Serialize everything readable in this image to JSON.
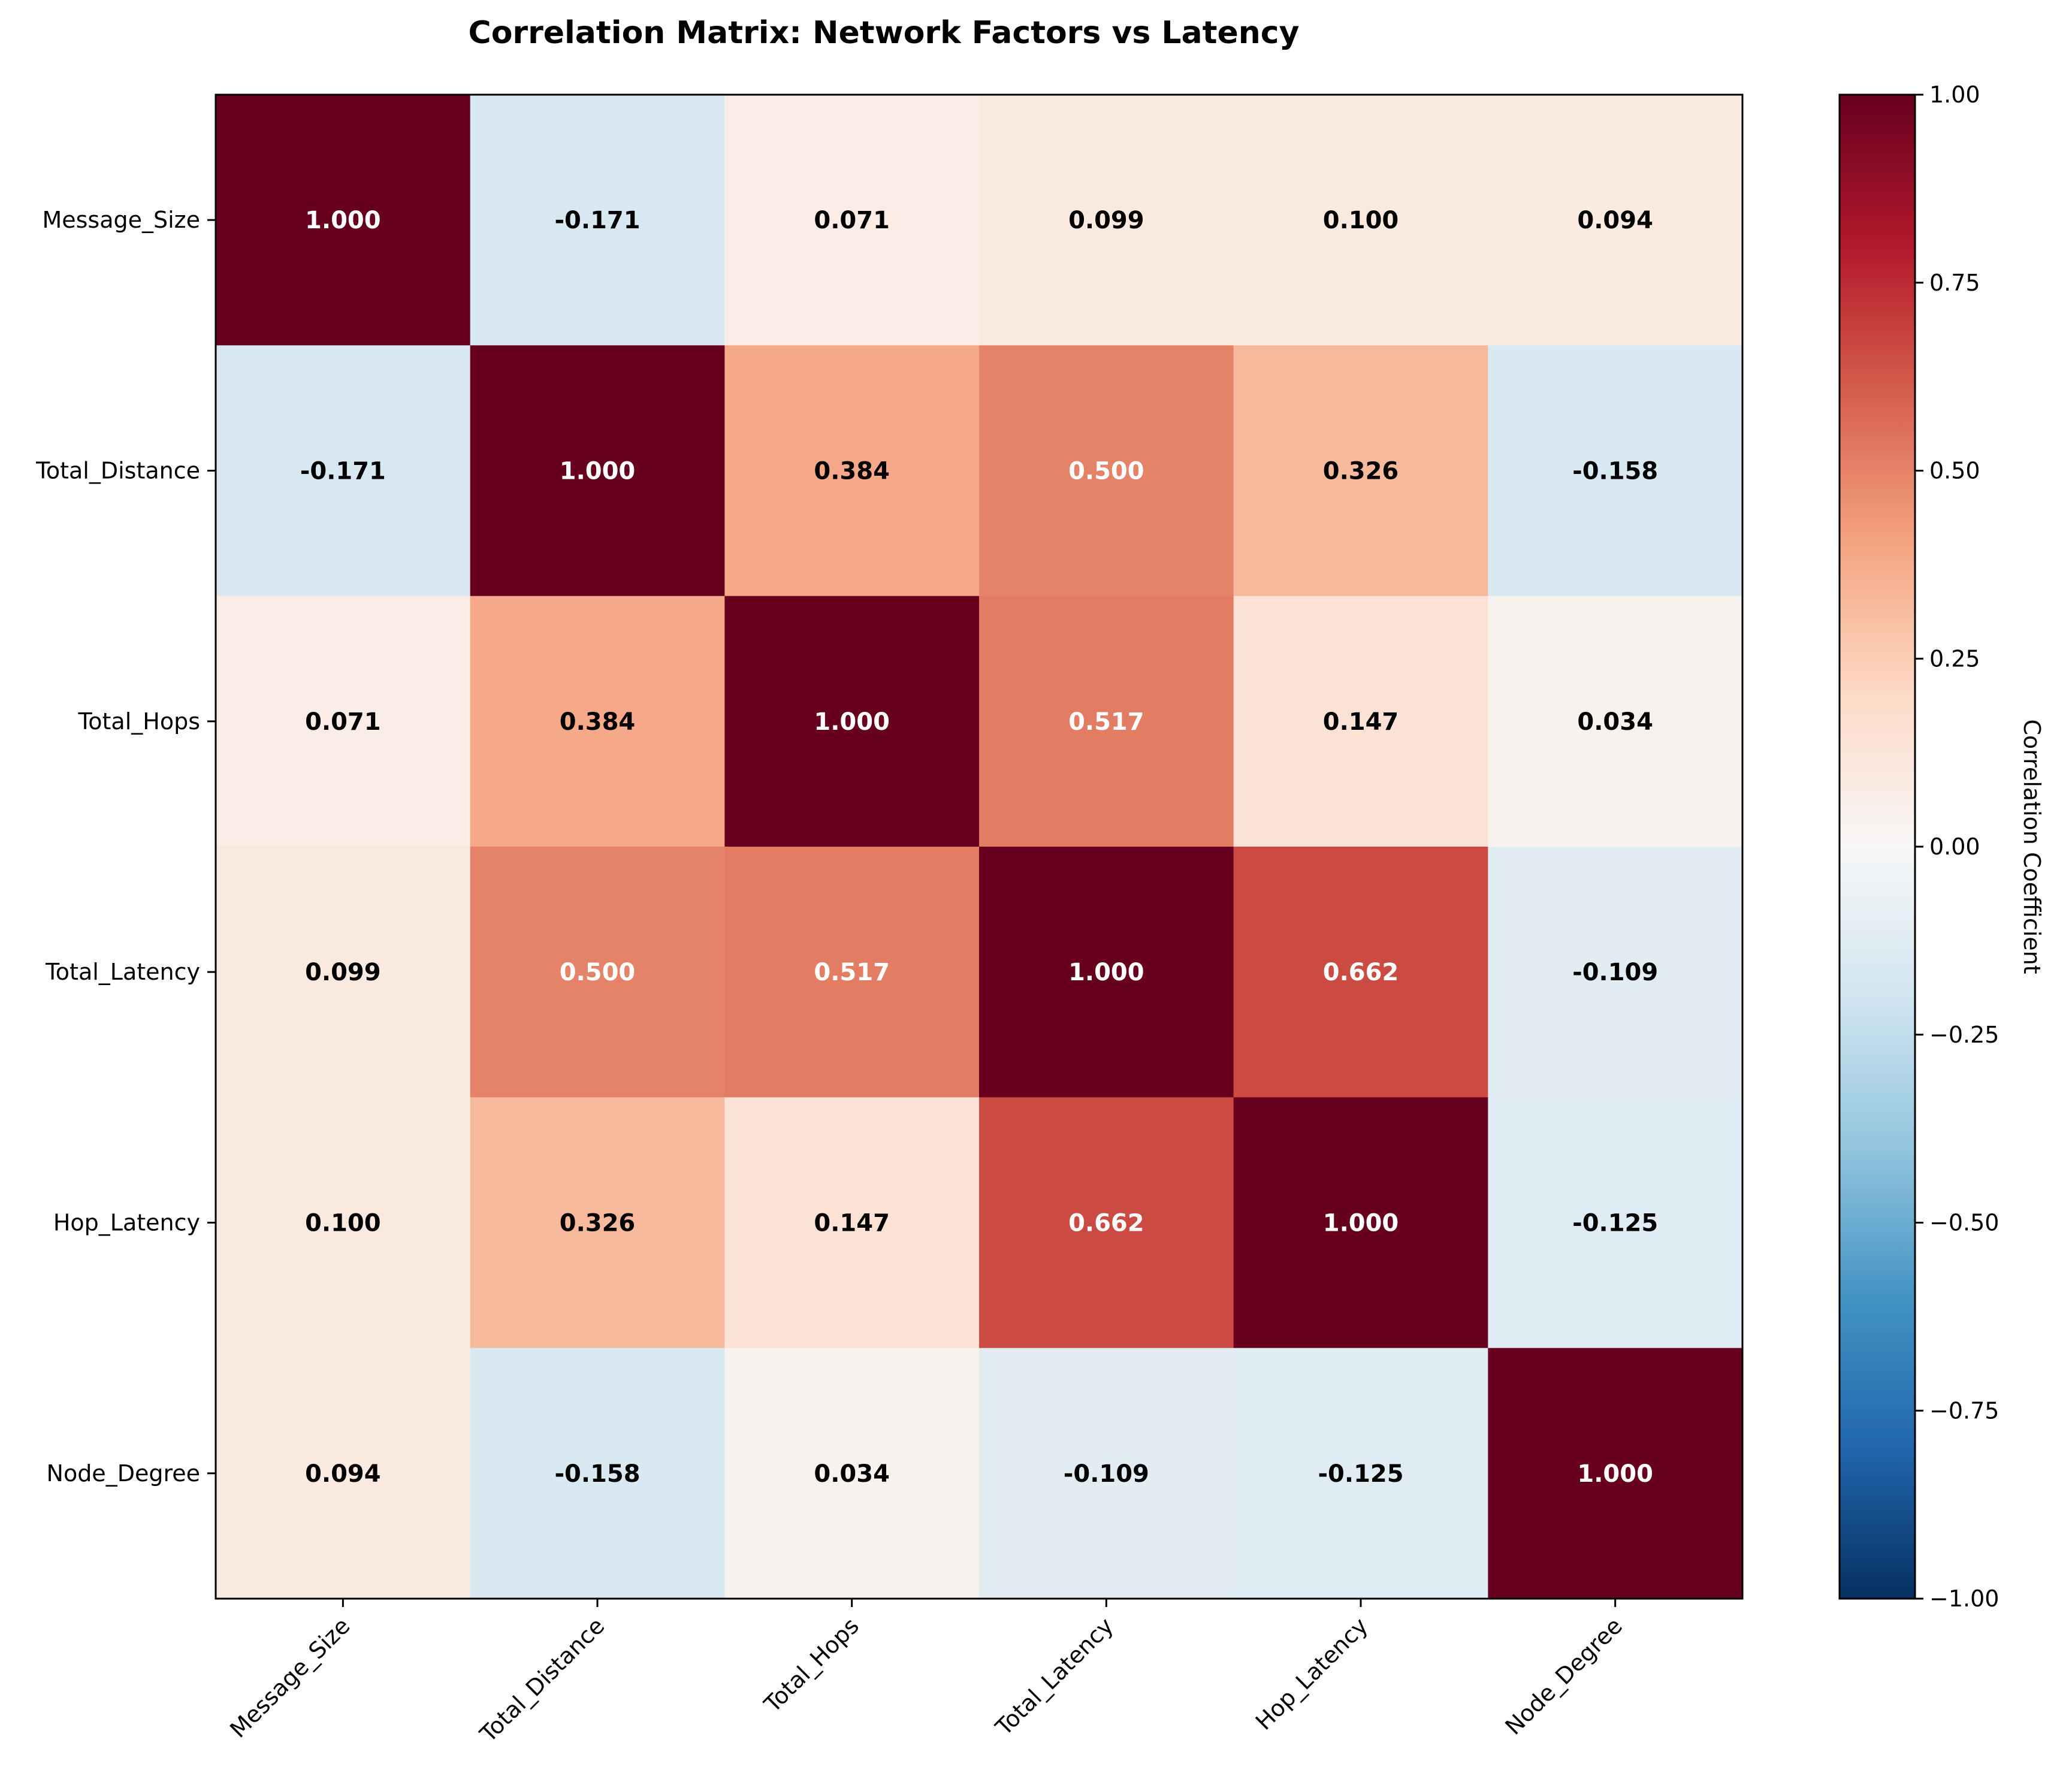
{
  "chart_data": {
    "type": "heatmap",
    "title": "Correlation Matrix: Network Factors vs Latency",
    "row_labels": [
      "Message_Size",
      "Total_Distance",
      "Total_Hops",
      "Total_Latency",
      "Hop_Latency",
      "Node_Degree"
    ],
    "col_labels": [
      "Message_Size",
      "Total_Distance",
      "Total_Hops",
      "Total_Latency",
      "Hop_Latency",
      "Node_Degree"
    ],
    "values": [
      [
        1.0,
        -0.171,
        0.071,
        0.099,
        0.1,
        0.094
      ],
      [
        -0.171,
        1.0,
        0.384,
        0.5,
        0.326,
        -0.158
      ],
      [
        0.071,
        0.384,
        1.0,
        0.517,
        0.147,
        0.034
      ],
      [
        0.099,
        0.5,
        0.517,
        1.0,
        0.662,
        -0.109
      ],
      [
        0.1,
        0.326,
        0.147,
        0.662,
        1.0,
        -0.125
      ],
      [
        0.094,
        -0.158,
        0.034,
        -0.109,
        -0.125,
        1.0
      ]
    ],
    "value_format": "3 decimals",
    "colormap": "RdBu_r",
    "vmin": -1.0,
    "vmax": 1.0,
    "colorbar": {
      "label": "Correlation Coefficient",
      "ticks": [
        1.0,
        0.75,
        0.5,
        0.25,
        0.0,
        -0.25,
        -0.5,
        -0.75,
        -1.0
      ],
      "tick_labels": [
        "1.00",
        "0.75",
        "0.50",
        "0.25",
        "0.00",
        "−0.25",
        "−0.50",
        "−0.75",
        "−1.00"
      ],
      "position": "right"
    },
    "colors": {
      "max_positive": "#67001f",
      "zero": "#f7f7f7",
      "max_negative": "#053061",
      "dark_text": "#000000",
      "light_text": "#ffffff"
    }
  }
}
